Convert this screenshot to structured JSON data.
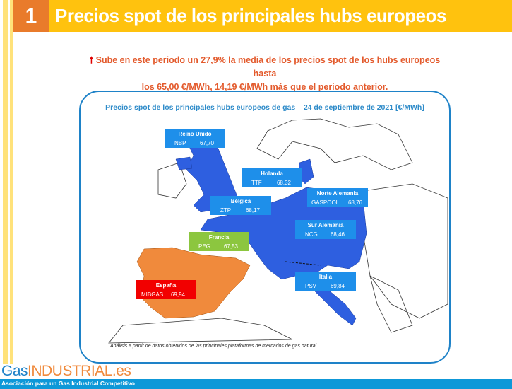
{
  "header": {
    "number": "1",
    "title": "Precios spot de los principales hubs europeos"
  },
  "summary": {
    "icon": "arrow-up-icon",
    "line1": "Sube en este periodo un 27,9% la media de los precios spot de los hubs europeos hasta",
    "line2": "los 65,00 €/MWh, 14,19 €/MWh más que el periodo anterior."
  },
  "map": {
    "title": "Precios spot de los principales hubs europeos de gas – 24 de septiembre de 2021 [€/MWh]",
    "hubs": [
      {
        "country": "Reino Unido",
        "hub": "NBP",
        "price": "67,70",
        "color": "#1E8FEA"
      },
      {
        "country": "Holanda",
        "hub": "TTF",
        "price": "68,32",
        "color": "#1E8FEA"
      },
      {
        "country": "Norte Alemania",
        "hub": "GASPOOL",
        "price": "68,76",
        "color": "#1E8FEA"
      },
      {
        "country": "Bélgica",
        "hub": "ZTP",
        "price": "68,17",
        "color": "#1E8FEA"
      },
      {
        "country": "Sur Alemania",
        "hub": "NCG",
        "price": "68,46",
        "color": "#1E8FEA"
      },
      {
        "country": "Francia",
        "hub": "PEG",
        "price": "67,53",
        "color": "#8CC63F"
      },
      {
        "country": "Italia",
        "hub": "PSV",
        "price": "69,84",
        "color": "#1E8FEA"
      },
      {
        "country": "España",
        "hub": "MIBGAS",
        "price": "69,94",
        "color": "#F20000"
      }
    ],
    "note": "Análisis a partir de datos obtenidos de las principales plataformas de mercados de gas natural",
    "colors": {
      "hub_region": "#2E5FE0",
      "spain_region": "#F08A3C"
    }
  },
  "footer": {
    "logo_gas": "Gas",
    "logo_industrial": "INDUSTRIAL.es",
    "tagline": "Asociación para un Gas Industrial Competitivo"
  }
}
